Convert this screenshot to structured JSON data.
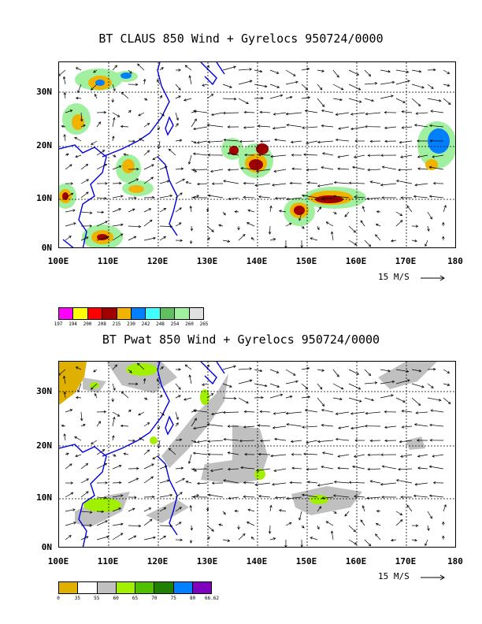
{
  "panels": [
    {
      "title": "BT CLAUS 850 Wind + Gyrelocs 950724/0000",
      "ref_vector": "15 M/S",
      "lat_labels": [
        "30N",
        "20N",
        "10N",
        "0N"
      ],
      "lon_labels": [
        "100E",
        "110E",
        "120E",
        "130E",
        "140E",
        "150E",
        "160E",
        "170E",
        "180"
      ],
      "legend_colors": [
        "#ff00ff",
        "#ffff00",
        "#ff0000",
        "#a00000",
        "#f0b400",
        "#0080ff",
        "#40ffff",
        "#60c060",
        "#a0f0a0",
        "#e0e0e0"
      ],
      "legend_ticks": [
        "197",
        "194",
        "200",
        "208",
        "215",
        "230",
        "242",
        "248",
        "254",
        "260",
        "265"
      ]
    },
    {
      "title": "BT Pwat 850 Wind + Gyrelocs 950724/0000",
      "ref_vector": "15 M/S",
      "lat_labels": [
        "30N",
        "20N",
        "10N",
        "0N"
      ],
      "lon_labels": [
        "100E",
        "110E",
        "120E",
        "130E",
        "140E",
        "150E",
        "160E",
        "170E",
        "180"
      ],
      "legend_colors": [
        "#e0b000",
        "#ffffff",
        "#c0c0c0",
        "#a0f000",
        "#50c000",
        "#208000",
        "#0080ff",
        "#8000c0"
      ],
      "legend_ticks": [
        "0",
        "35",
        "55",
        "60",
        "65",
        "70",
        "75",
        "80",
        "66.62"
      ]
    }
  ]
}
